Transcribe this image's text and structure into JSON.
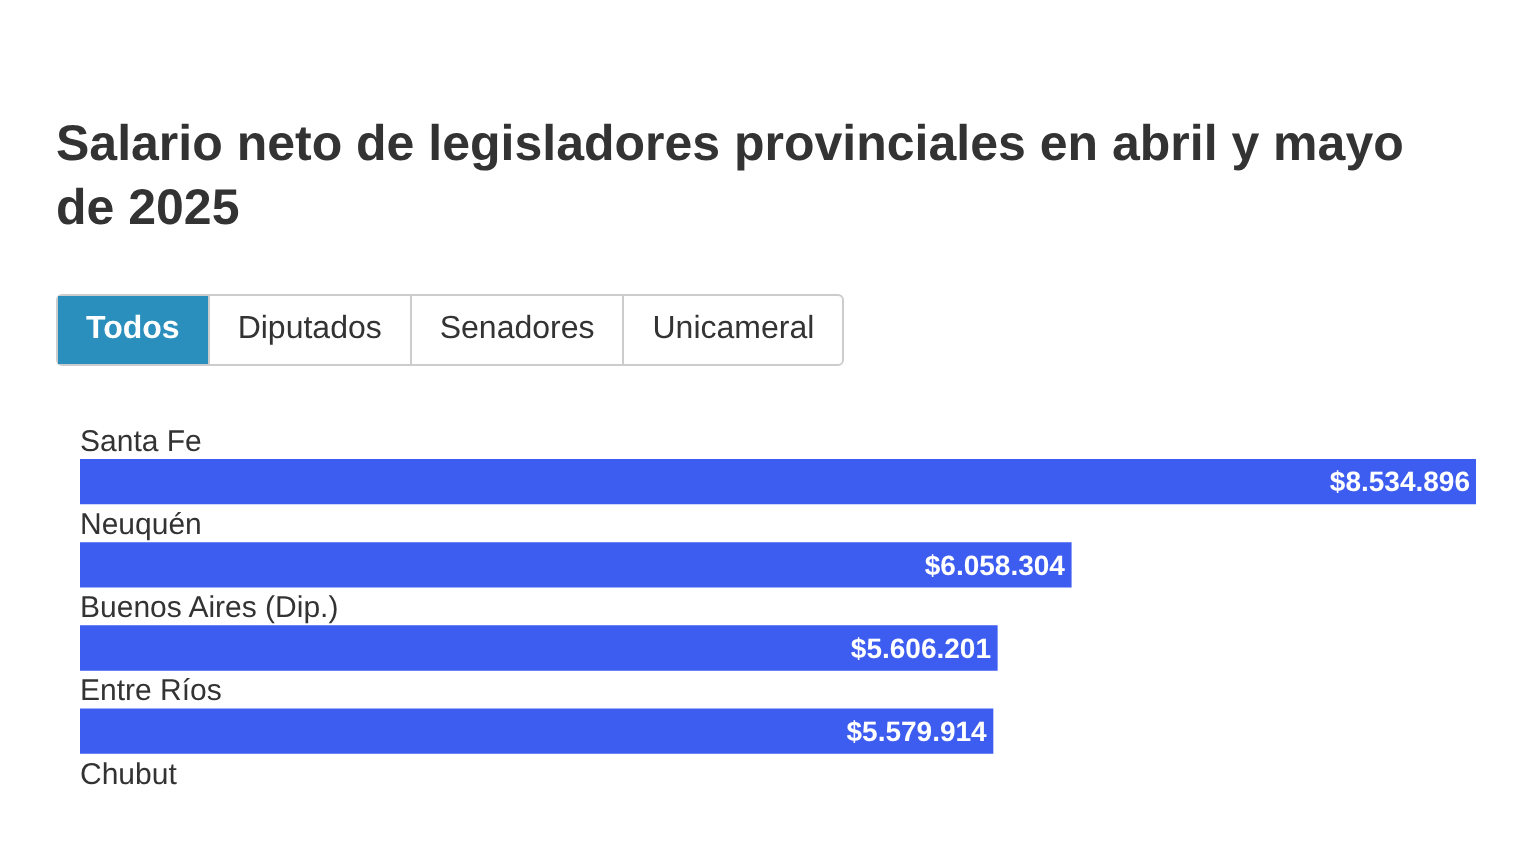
{
  "chart_data": {
    "type": "bar",
    "orientation": "horizontal",
    "title": "Salario neto de legisladores provinciales en abril y mayo de 2025",
    "annotations": [
      "Todos",
      "Diputados",
      "Senadores",
      "Unicameral"
    ],
    "categories": [
      "Santa Fe",
      "Neuquén",
      "Buenos Aires (Dip.)",
      "Entre Ríos",
      "Chubut"
    ],
    "values": [
      8534896,
      6058304,
      5606201,
      5579914,
      null
    ],
    "value_labels": [
      "$8.534.896",
      "$6.058.304",
      "$5.606.201",
      "$5.579.914",
      null
    ],
    "color": "#3d5cf0",
    "legend": false
  }
}
